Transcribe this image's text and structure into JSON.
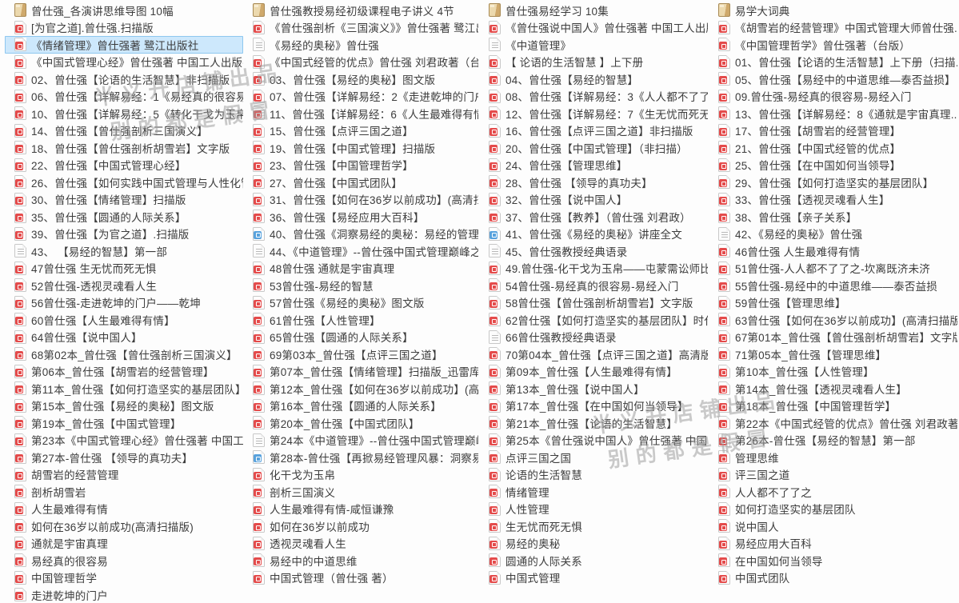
{
  "watermark": {
    "line1": "半义升店铺出品",
    "line2": "别的都是假冒"
  },
  "colors": {
    "selection_bg": "#cde8fc",
    "selection_border": "#8ec7ef",
    "pdf_icon": "#e44b4b",
    "html_icon": "#58a2dd",
    "folder_icon": "#ecd9ae",
    "text": "#3c3c3c",
    "watermark": "#9f9f9f"
  },
  "columns": [
    [
      {
        "icon": "folder",
        "label": "曾仕强_各演讲思维导图 10幅"
      },
      {
        "icon": "pdf",
        "label": "[为官之道].曾仕强.扫描版"
      },
      {
        "icon": "pdf",
        "label": "《情绪管理》曾仕强著 鹭江出版社",
        "selected": true
      },
      {
        "icon": "pdf",
        "label": "《中国式管理心经》曾仕强著 中国工人出版社..."
      },
      {
        "icon": "pdf",
        "label": "02、曾仕强【论语的生活智慧】非扫描版"
      },
      {
        "icon": "pdf",
        "label": "06、曾仕强【详解易经：1《易经真的很容易..."
      },
      {
        "icon": "pdf",
        "label": "10、曾仕强【详解易经：5《转化干戈为玉帛..."
      },
      {
        "icon": "pdf",
        "label": "14、曾仕强【曾仕强剖析三国演义】"
      },
      {
        "icon": "pdf",
        "label": "18、曾仕强【曾仕强剖析胡雪岩】文字版"
      },
      {
        "icon": "pdf",
        "label": "22、曾仕强【中国式管理心经】"
      },
      {
        "icon": "pdf",
        "label": "26、曾仕强【如何实践中国式管理与人性化管..."
      },
      {
        "icon": "pdf",
        "label": "30、曾仕强【情绪管理】扫描版"
      },
      {
        "icon": "pdf",
        "label": "35、曾仕强【圆通的人际关系】"
      },
      {
        "icon": "pdf",
        "label": "39、曾仕强【为官之道】.扫描版"
      },
      {
        "icon": "txt",
        "label": "43、 【易经的智慧】第一部"
      },
      {
        "icon": "pdf",
        "label": "47曾仕强 生无忧而死无惧"
      },
      {
        "icon": "pdf",
        "label": "52曾仕强-透视灵魂看人生"
      },
      {
        "icon": "pdf",
        "label": "56曾仕强-走进乾坤的门户——乾坤"
      },
      {
        "icon": "pdf",
        "label": "60曾仕强【人生最难得有情】"
      },
      {
        "icon": "pdf",
        "label": "64曾仕强【说中国人】"
      },
      {
        "icon": "pdf",
        "label": "68第02本_曾仕强【曾仕强剖析三国演义】"
      },
      {
        "icon": "pdf",
        "label": "第06本_曾仕强【胡雪岩的经营管理】"
      },
      {
        "icon": "pdf",
        "label": "第11本_曾仕强【如何打造坚实的基层团队】时..."
      },
      {
        "icon": "pdf",
        "label": "第15本_曾仕强【易经的奥秘】图文版"
      },
      {
        "icon": "pdf",
        "label": "第19本_曾仕强【中国式管理】"
      },
      {
        "icon": "pdf",
        "label": "第23本《中国式管理心经》曾仕强著 中国工人..."
      },
      {
        "icon": "pdf",
        "label": "第27本-曾仕强 【领导的真功夫】"
      },
      {
        "icon": "pdf",
        "label": "胡雪岩的经营管理"
      },
      {
        "icon": "pdf",
        "label": "剖析胡雪岩"
      },
      {
        "icon": "pdf",
        "label": "人生最难得有情"
      },
      {
        "icon": "pdf",
        "label": "如何在36岁以前成功(高清扫描版)"
      },
      {
        "icon": "pdf",
        "label": "通就是宇宙真理"
      },
      {
        "icon": "pdf",
        "label": "易经真的很容易"
      },
      {
        "icon": "pdf",
        "label": "中国管理哲学"
      },
      {
        "icon": "pdf",
        "label": "走进乾坤的门户"
      }
    ],
    [
      {
        "icon": "folder",
        "label": "曾仕强教授易经初级课程电子讲义 4节"
      },
      {
        "icon": "pdf",
        "label": "《曾仕强剖析《三国演义》》曾仕强著 鹭江出..."
      },
      {
        "icon": "txt",
        "label": "《易经的奥秘》曾仕强"
      },
      {
        "icon": "pdf",
        "label": "《中国式经管的优点》曾仕强 刘君政著（台版）"
      },
      {
        "icon": "pdf",
        "label": "03、曾仕强【易经的奥秘】图文版"
      },
      {
        "icon": "pdf",
        "label": "07、曾仕强【详解易经：2《走进乾坤的门户..."
      },
      {
        "icon": "pdf",
        "label": "11、曾仕强【详解易经：6《人生最难得有情..."
      },
      {
        "icon": "pdf",
        "label": "15、曾仕强【点评三国之道】"
      },
      {
        "icon": "pdf",
        "label": "19、曾仕强【中国式管理】扫描版"
      },
      {
        "icon": "pdf",
        "label": "23、曾仕强【中国管理哲学】"
      },
      {
        "icon": "pdf",
        "label": "27、曾仕强【中国式团队】"
      },
      {
        "icon": "pdf",
        "label": "31、曾仕强【如何在36岁以前成功】(高清扫..."
      },
      {
        "icon": "pdf",
        "label": "36、曾仕强【易经应用大百科】"
      },
      {
        "icon": "html",
        "label": "40、曾仕强《洞察易经的奥秘：易经的管理智..."
      },
      {
        "icon": "txt",
        "label": "44、《中道管理》--曾仕强中国式管理巅峰之作"
      },
      {
        "icon": "pdf",
        "label": "48曾仕强 通就是宇宙真理"
      },
      {
        "icon": "pdf",
        "label": "53曾仕强-易经的智慧"
      },
      {
        "icon": "pdf",
        "label": "57曾仕强《易经的奥秘》图文版"
      },
      {
        "icon": "pdf",
        "label": "61曾仕强【人性管理】"
      },
      {
        "icon": "pdf",
        "label": "65曾仕强【圆通的人际关系】"
      },
      {
        "icon": "pdf",
        "label": "69第03本_曾仕强【点评三国之道】"
      },
      {
        "icon": "pdf",
        "label": "第07本_曾仕强【情绪管理】扫描版_迅雷库整理"
      },
      {
        "icon": "pdf",
        "label": "第12本_曾仕强【如何在36岁以前成功】(高清..."
      },
      {
        "icon": "pdf",
        "label": "第16本_曾仕强【圆通的人际关系】"
      },
      {
        "icon": "pdf",
        "label": "第20本_曾仕强【中国式团队】"
      },
      {
        "icon": "txt",
        "label": "第24本《中道管理》--曾仕强中国式管理巅峰..."
      },
      {
        "icon": "html",
        "label": "第28本-曾仕强【再掀易经管理风暴：洞察易经..."
      },
      {
        "icon": "pdf",
        "label": "化干戈为玉帛"
      },
      {
        "icon": "pdf",
        "label": "剖析三国演义"
      },
      {
        "icon": "pdf",
        "label": "人生最难得有情-咸恒谦豫"
      },
      {
        "icon": "pdf",
        "label": "如何在36岁以前成功"
      },
      {
        "icon": "pdf",
        "label": "透视灵魂看人生"
      },
      {
        "icon": "pdf",
        "label": "易经中的中道思维"
      },
      {
        "icon": "pdf",
        "label": "中国式管理（曾仕强 著）"
      }
    ],
    [
      {
        "icon": "folder",
        "label": "曾仕强易经学习 10集"
      },
      {
        "icon": "pdf",
        "label": "《曾仕强说中国人》曾仕强著 中国工人出版社"
      },
      {
        "icon": "txt",
        "label": "《中道管理》"
      },
      {
        "icon": "pdf",
        "label": "【 论语的生活智慧 】上下册"
      },
      {
        "icon": "pdf",
        "label": "04、曾仕强【易经的智慧】"
      },
      {
        "icon": "pdf",
        "label": "08、曾仕强【详解易经：3《人人都不了了之..."
      },
      {
        "icon": "pdf",
        "label": "12、曾仕强【详解易经：7《生无忧而死无惧..."
      },
      {
        "icon": "pdf",
        "label": "16、曾仕强【点评三国之道】非扫描版"
      },
      {
        "icon": "pdf",
        "label": "20、曾仕强【中国式管理】（非扫描）"
      },
      {
        "icon": "pdf",
        "label": "24、曾仕强【管理思维】"
      },
      {
        "icon": "pdf",
        "label": "28、曾仕强 【领导的真功夫】"
      },
      {
        "icon": "pdf",
        "label": "32、曾仕强【说中国人】"
      },
      {
        "icon": "pdf",
        "label": "37、曾仕强【教养】（曾仕强 刘君政）"
      },
      {
        "icon": "html",
        "label": "41、曾仕强《易经的奥秘》讲座全文"
      },
      {
        "icon": "txt",
        "label": "45、曾仕强教授经典语录"
      },
      {
        "icon": "pdf",
        "label": "49.曾仕强-化干戈为玉帛——屯蒙需讼师比"
      },
      {
        "icon": "pdf",
        "label": "54曾仕强-易经真的很容易-易经入门"
      },
      {
        "icon": "pdf",
        "label": "58曾仕强【曾仕强剖析胡雪岩】文字版"
      },
      {
        "icon": "pdf",
        "label": "62曾仕强【如何打造坚实的基层团队】时代光华"
      },
      {
        "icon": "txt",
        "label": "66曾仕强教授经典语录"
      },
      {
        "icon": "pdf",
        "label": "70第04本_曾仕强【点评三国之道】高清版"
      },
      {
        "icon": "pdf",
        "label": "第09本_曾仕强【人生最难得有情】"
      },
      {
        "icon": "pdf",
        "label": "第13本_曾仕强【说中国人】"
      },
      {
        "icon": "pdf",
        "label": "第17本_曾仕强【在中国如何当领导】"
      },
      {
        "icon": "pdf",
        "label": "第21本_曾仕强【论语的生活智慧】"
      },
      {
        "icon": "pdf",
        "label": "第25本《曾仕强说中国人》曾仕强著 中国工人..."
      },
      {
        "icon": "pdf",
        "label": "点评三国之国"
      },
      {
        "icon": "pdf",
        "label": "论语的生活智慧"
      },
      {
        "icon": "pdf",
        "label": "情绪管理"
      },
      {
        "icon": "pdf",
        "label": "人性管理"
      },
      {
        "icon": "pdf",
        "label": "生无忧而死无惧"
      },
      {
        "icon": "pdf",
        "label": "易经的奥秘"
      },
      {
        "icon": "pdf",
        "label": "圆通的人际关系"
      },
      {
        "icon": "pdf",
        "label": "中国式管理"
      }
    ],
    [
      {
        "icon": "folder",
        "label": "易学大词典"
      },
      {
        "icon": "pdf",
        "label": "《胡雪岩的经营管理》中国式管理大师曾仕强..."
      },
      {
        "icon": "pdf",
        "label": "《中国管理哲学》曾仕强著（台版）"
      },
      {
        "icon": "pdf",
        "label": "01、曾仕强【论语的生活智慧】上下册（扫描..."
      },
      {
        "icon": "pdf",
        "label": "05、曾仕强【易经中的中道思维—泰否益损】"
      },
      {
        "icon": "pdf",
        "label": "09.曾仕强-易经真的很容易-易经入门"
      },
      {
        "icon": "pdf",
        "label": "13、曾仕强【详解易经：8《通就是宇宙真理..."
      },
      {
        "icon": "pdf",
        "label": "17、曾仕强【胡雪岩的经营管理】"
      },
      {
        "icon": "pdf",
        "label": "21、曾仕强【中国式经管的优点】"
      },
      {
        "icon": "pdf",
        "label": "25、曾仕强【在中国如何当领导】"
      },
      {
        "icon": "pdf",
        "label": "29、曾仕强【如何打造坚实的基层团队】"
      },
      {
        "icon": "pdf",
        "label": "33、曾仕强【透视灵魂看人生】"
      },
      {
        "icon": "pdf",
        "label": "38、曾仕强【亲子关系】"
      },
      {
        "icon": "txt",
        "label": "42、《易经的奥秘》曾仕强"
      },
      {
        "icon": "pdf",
        "label": "46曾仕强 人生最难得有情"
      },
      {
        "icon": "pdf",
        "label": "51曾仕强-人人都不了了之-坎离既济未济"
      },
      {
        "icon": "pdf",
        "label": "55曾仕强-易经中的中道思维——泰否益损"
      },
      {
        "icon": "pdf",
        "label": "59曾仕强【管理思维】"
      },
      {
        "icon": "pdf",
        "label": "63曾仕强【如何在36岁以前成功】(高清扫描版)"
      },
      {
        "icon": "pdf",
        "label": "67第01本_曾仕强【曾仕强剖析胡雪岩】文字版"
      },
      {
        "icon": "pdf",
        "label": "71第05本_曾仕强【管理思维】"
      },
      {
        "icon": "pdf",
        "label": "第10本_曾仕强【人性管理】"
      },
      {
        "icon": "pdf",
        "label": "第14本_曾仕强【透视灵魂看人生】"
      },
      {
        "icon": "pdf",
        "label": "第18本_曾仕强【中国管理哲学】"
      },
      {
        "icon": "pdf",
        "label": "第22本《中国式经管的优点》曾仕强 刘君政著..."
      },
      {
        "icon": "pdf",
        "label": "第26本-曾仕强【易经的智慧】第一部"
      },
      {
        "icon": "pdf",
        "label": "管理思维"
      },
      {
        "icon": "pdf",
        "label": "评三国之道"
      },
      {
        "icon": "pdf",
        "label": "人人都不了了之"
      },
      {
        "icon": "pdf",
        "label": "如何打造坚实的基层团队"
      },
      {
        "icon": "pdf",
        "label": "说中国人"
      },
      {
        "icon": "pdf",
        "label": "易经应用大百科"
      },
      {
        "icon": "pdf",
        "label": "在中国如何当领导"
      },
      {
        "icon": "pdf",
        "label": "中国式团队"
      }
    ]
  ]
}
